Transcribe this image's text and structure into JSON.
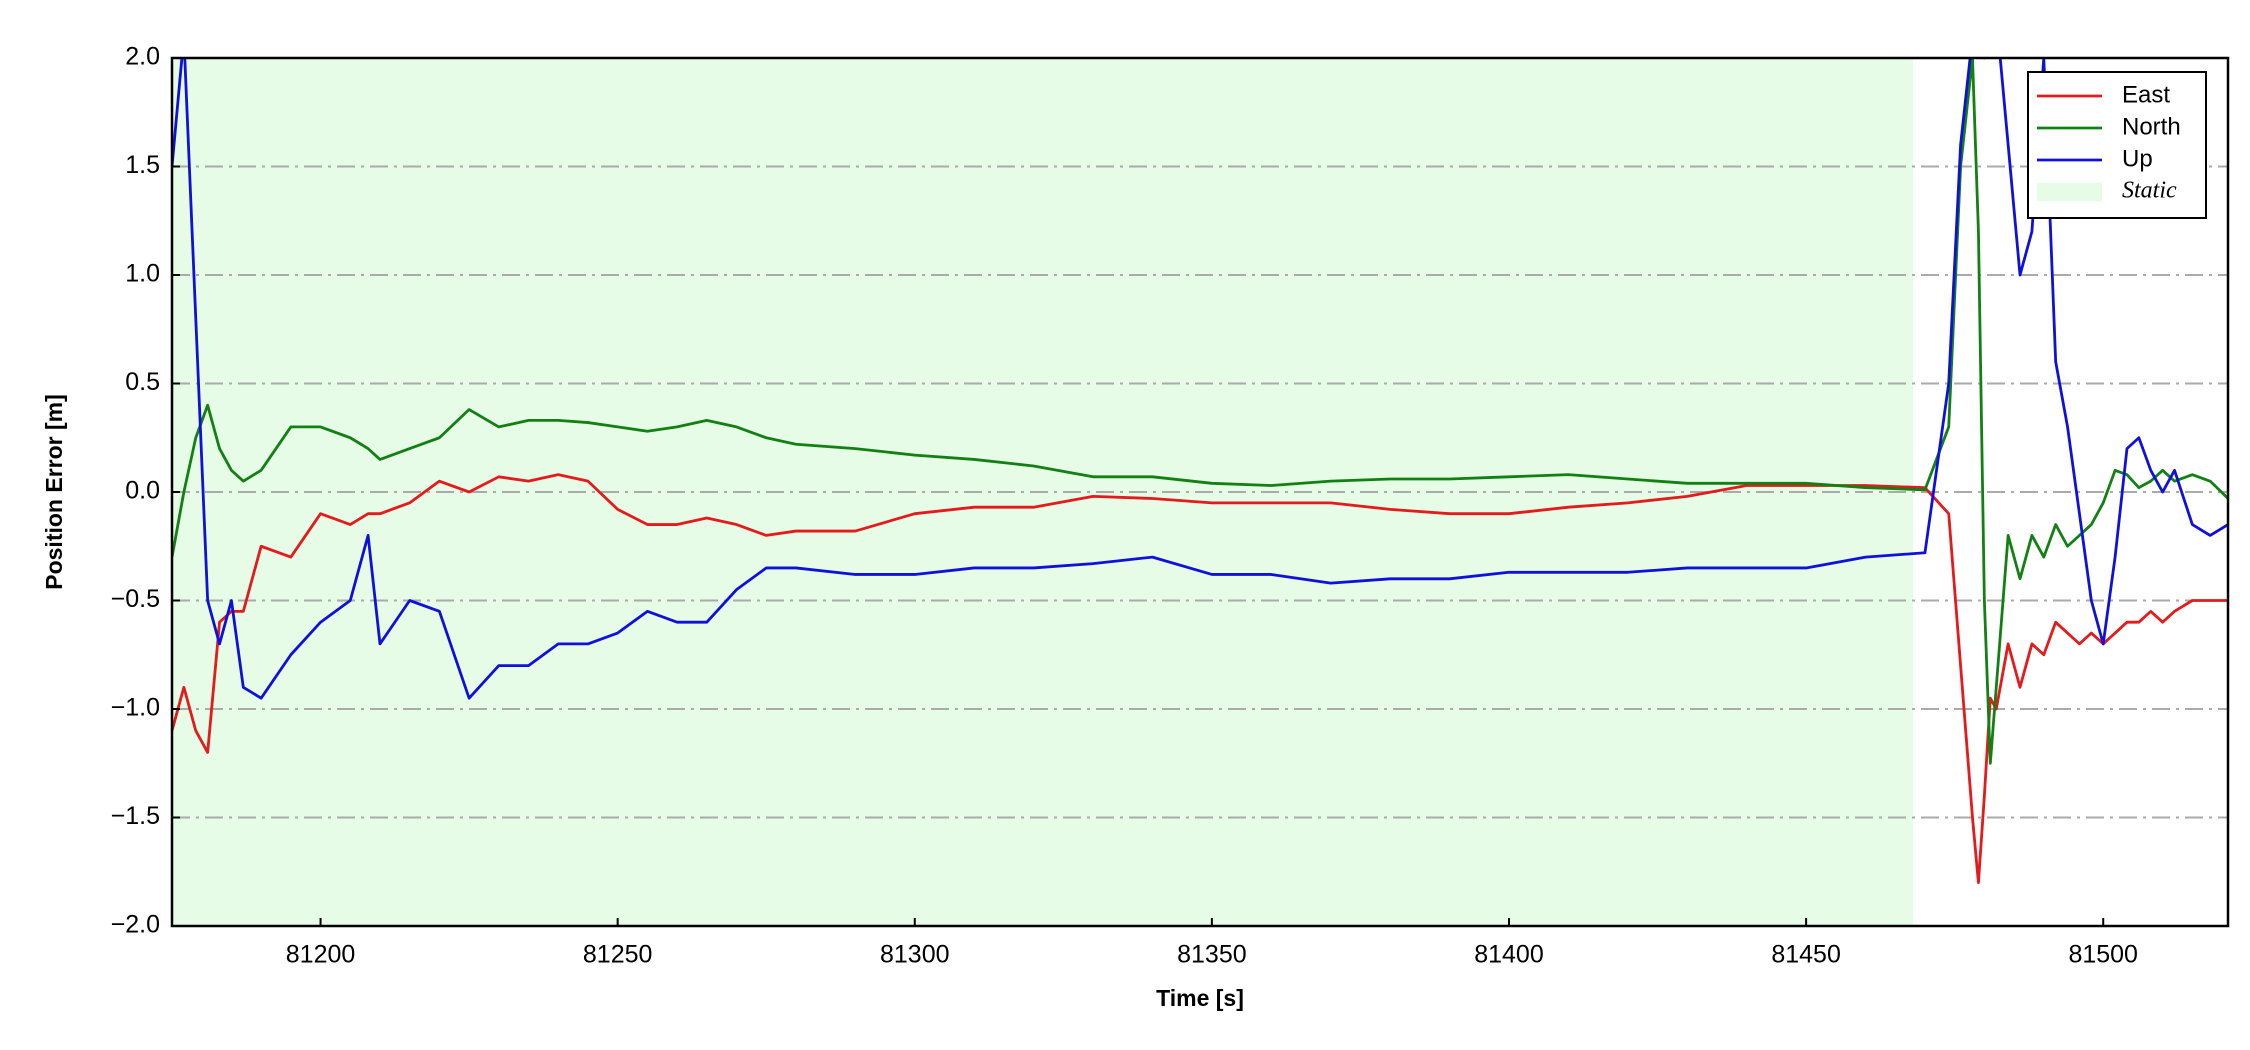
{
  "chart_data": {
    "type": "line",
    "x_label": "Time [s]",
    "y_label": "Position Error [m]",
    "xlim": [
      81175,
      81521
    ],
    "ylim": [
      -2.0,
      2.0
    ],
    "xticks": [
      81200,
      81250,
      81300,
      81350,
      81400,
      81450,
      81500
    ],
    "yticks": [
      {
        "value": -2.0,
        "label": "−2.0"
      },
      {
        "value": -1.5,
        "label": "−1.5"
      },
      {
        "value": -1.0,
        "label": "−1.0"
      },
      {
        "value": -0.5,
        "label": "−0.5"
      },
      {
        "value": 0.0,
        "label": "0.0"
      },
      0.5,
      {
        "value": 1.0,
        "label": "1.0"
      },
      1.5,
      {
        "value": 2.0,
        "label": "2.0"
      }
    ],
    "grid": "y",
    "legend": "upper right",
    "shaded_region": {
      "label": "Static",
      "x": [
        81175,
        81468
      ],
      "color": "#e6fce6"
    },
    "x": [
      81175,
      81177,
      81179,
      81181,
      81183,
      81185,
      81187,
      81190,
      81195,
      81200,
      81205,
      81208,
      81210,
      81215,
      81220,
      81225,
      81230,
      81235,
      81240,
      81245,
      81250,
      81255,
      81260,
      81265,
      81270,
      81275,
      81280,
      81290,
      81300,
      81310,
      81320,
      81330,
      81340,
      81350,
      81360,
      81370,
      81380,
      81390,
      81400,
      81410,
      81420,
      81430,
      81440,
      81450,
      81460,
      81470,
      81474,
      81476,
      81478,
      81479,
      81480,
      81481,
      81482,
      81484,
      81486,
      81488,
      81490,
      81492,
      81494,
      81496,
      81498,
      81500,
      81502,
      81504,
      81506,
      81508,
      81510,
      81512,
      81515,
      81518,
      81521
    ],
    "series": [
      {
        "name": "East",
        "color": "#e41a1c",
        "values": [
          -1.1,
          -0.9,
          -1.1,
          -1.2,
          -0.6,
          -0.55,
          -0.55,
          -0.25,
          -0.3,
          -0.1,
          -0.15,
          -0.1,
          -0.1,
          -0.05,
          0.05,
          0.0,
          0.07,
          0.05,
          0.08,
          0.05,
          -0.08,
          -0.15,
          -0.15,
          -0.12,
          -0.15,
          -0.2,
          -0.18,
          -0.18,
          -0.1,
          -0.07,
          -0.07,
          -0.02,
          -0.03,
          -0.05,
          -0.05,
          -0.05,
          -0.08,
          -0.1,
          -0.1,
          -0.07,
          -0.05,
          -0.02,
          0.03,
          0.03,
          0.03,
          0.02,
          -0.1,
          -0.8,
          -1.5,
          -1.8,
          -1.4,
          -0.95,
          -1.0,
          -0.7,
          -0.9,
          -0.7,
          -0.75,
          -0.6,
          -0.65,
          -0.7,
          -0.65,
          -0.7,
          -0.65,
          -0.6,
          -0.6,
          -0.55,
          -0.6,
          -0.55,
          -0.5,
          -0.5,
          -0.5
        ]
      },
      {
        "name": "North",
        "color": "#138013",
        "values": [
          -0.3,
          0.0,
          0.25,
          0.4,
          0.2,
          0.1,
          0.05,
          0.1,
          0.3,
          0.3,
          0.25,
          0.2,
          0.15,
          0.2,
          0.25,
          0.38,
          0.3,
          0.33,
          0.33,
          0.32,
          0.3,
          0.28,
          0.3,
          0.33,
          0.3,
          0.25,
          0.22,
          0.2,
          0.17,
          0.15,
          0.12,
          0.07,
          0.07,
          0.04,
          0.03,
          0.05,
          0.06,
          0.06,
          0.07,
          0.08,
          0.06,
          0.04,
          0.04,
          0.04,
          0.02,
          0.01,
          0.3,
          1.5,
          2.0,
          1.2,
          -0.5,
          -1.25,
          -0.9,
          -0.2,
          -0.4,
          -0.2,
          -0.3,
          -0.15,
          -0.25,
          -0.2,
          -0.15,
          -0.05,
          0.1,
          0.08,
          0.02,
          0.05,
          0.1,
          0.05,
          0.08,
          0.05,
          -0.03
        ]
      },
      {
        "name": "Up",
        "color": "#1010dd",
        "values": [
          1.5,
          2.1,
          0.8,
          -0.5,
          -0.7,
          -0.5,
          -0.9,
          -0.95,
          -0.75,
          -0.6,
          -0.5,
          -0.2,
          -0.7,
          -0.5,
          -0.55,
          -0.95,
          -0.8,
          -0.8,
          -0.7,
          -0.7,
          -0.65,
          -0.55,
          -0.6,
          -0.6,
          -0.45,
          -0.35,
          -0.35,
          -0.38,
          -0.38,
          -0.35,
          -0.35,
          -0.33,
          -0.3,
          -0.38,
          -0.38,
          -0.42,
          -0.4,
          -0.4,
          -0.37,
          -0.37,
          -0.37,
          -0.35,
          -0.35,
          -0.35,
          -0.3,
          -0.28,
          0.5,
          1.6,
          2.1,
          2.2,
          2.0,
          2.1,
          2.2,
          1.6,
          1.0,
          1.2,
          2.0,
          0.6,
          0.3,
          -0.1,
          -0.5,
          -0.7,
          -0.3,
          0.2,
          0.25,
          0.1,
          0.0,
          0.1,
          -0.15,
          -0.2,
          -0.15
        ]
      }
    ]
  }
}
